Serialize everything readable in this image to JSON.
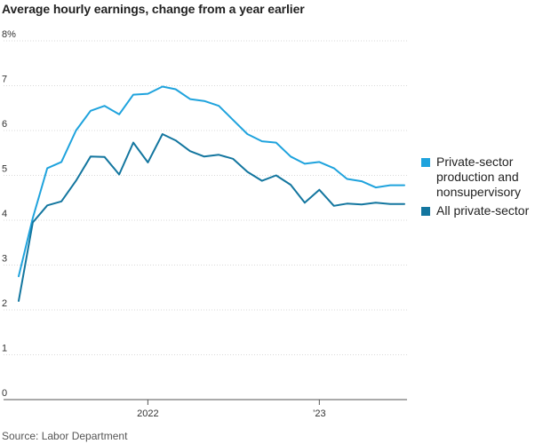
{
  "title": "Average hourly earnings, change from a year earlier",
  "source": "Source: Labor Department",
  "chart_data": {
    "type": "line",
    "title": "Average hourly earnings, change from a year earlier",
    "xlabel": "",
    "ylabel": "",
    "ylim": [
      0,
      8
    ],
    "y_ticks": [
      "0",
      "1",
      "2",
      "3",
      "4",
      "5",
      "6",
      "7",
      "8%"
    ],
    "x_ticks": [
      "2022",
      "’23"
    ],
    "x_tick_dates": [
      "2022-01",
      "2023-01"
    ],
    "grid": true,
    "legend_placement": "right",
    "x": [
      "2021-04",
      "2021-05",
      "2021-06",
      "2021-07",
      "2021-08",
      "2021-09",
      "2021-10",
      "2021-11",
      "2021-12",
      "2022-01",
      "2022-02",
      "2022-03",
      "2022-04",
      "2022-05",
      "2022-06",
      "2022-07",
      "2022-08",
      "2022-09",
      "2022-10",
      "2022-11",
      "2022-12",
      "2023-01",
      "2023-02",
      "2023-03",
      "2023-04",
      "2023-05",
      "2023-06",
      "2023-07"
    ],
    "series": [
      {
        "name": "Private-sector production and nonsupervisory",
        "color": "#1fa3dd",
        "values": [
          2.75,
          4.05,
          5.16,
          5.3,
          6.0,
          6.44,
          6.55,
          6.36,
          6.8,
          6.82,
          6.98,
          6.92,
          6.7,
          6.66,
          6.55,
          6.24,
          5.92,
          5.76,
          5.73,
          5.42,
          5.26,
          5.3,
          5.16,
          4.92,
          4.87,
          4.73,
          4.78,
          4.78
        ]
      },
      {
        "name": "All private-sector",
        "color": "#13769f",
        "values": [
          2.2,
          3.95,
          4.33,
          4.42,
          4.88,
          5.42,
          5.41,
          5.02,
          5.73,
          5.29,
          5.92,
          5.78,
          5.54,
          5.42,
          5.46,
          5.37,
          5.08,
          4.88,
          5.0,
          4.79,
          4.39,
          4.68,
          4.32,
          4.37,
          4.35,
          4.39,
          4.36,
          4.36
        ]
      }
    ]
  }
}
